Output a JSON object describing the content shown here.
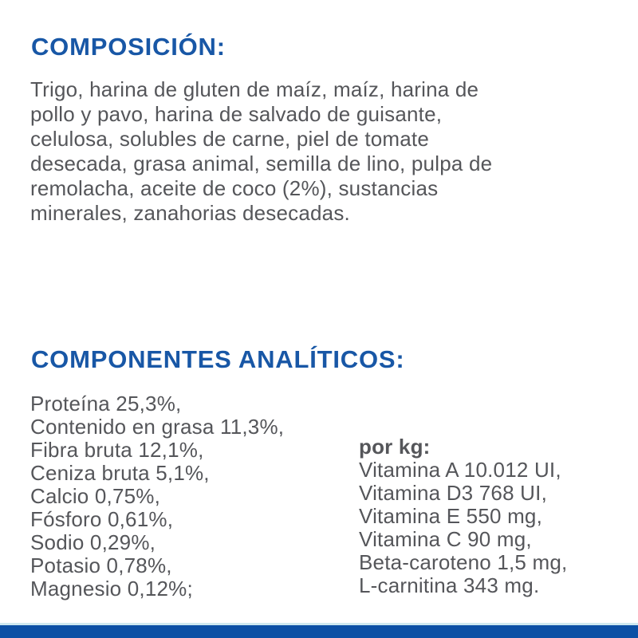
{
  "page": {
    "background_color": "#ffffff",
    "heading_color": "#1857a6",
    "body_text_color": "#55565a",
    "footer_bar_color": "#0c50a5",
    "footer_accent_line_color": "#cfe9f0"
  },
  "composition": {
    "heading": "COMPOSICIÓN:",
    "body_lines": [
      "Trigo, harina de gluten de maíz, maíz, harina de",
      "pollo y pavo, harina de salvado de guisante,",
      "celulosa, solubles de carne, piel de tomate",
      "desecada, grasa animal, semilla de lino, pulpa de",
      "remolacha, aceite de coco (2%), sustancias",
      "minerales, zanahorias desecadas."
    ]
  },
  "analytical_components": {
    "heading": "COMPONENTES ANALÍTICOS:",
    "left_items": [
      "Proteína 25,3%,",
      "Contenido en grasa 11,3%,",
      "Fibra bruta 12,1%,",
      "Ceniza bruta 5,1%,",
      "Calcio 0,75%,",
      "Fósforo 0,61%,",
      "Sodio 0,29%,",
      "Potasio 0,78%,",
      "Magnesio 0,12%;"
    ],
    "per_kg_label": "por kg:",
    "per_kg_items": [
      "Vitamina A 10.012 UI,",
      "Vitamina D3 768 UI,",
      "Vitamina E 550 mg,",
      "Vitamina C 90 mg,",
      "Beta-caroteno 1,5 mg,",
      "L-carnitina 343 mg."
    ]
  }
}
